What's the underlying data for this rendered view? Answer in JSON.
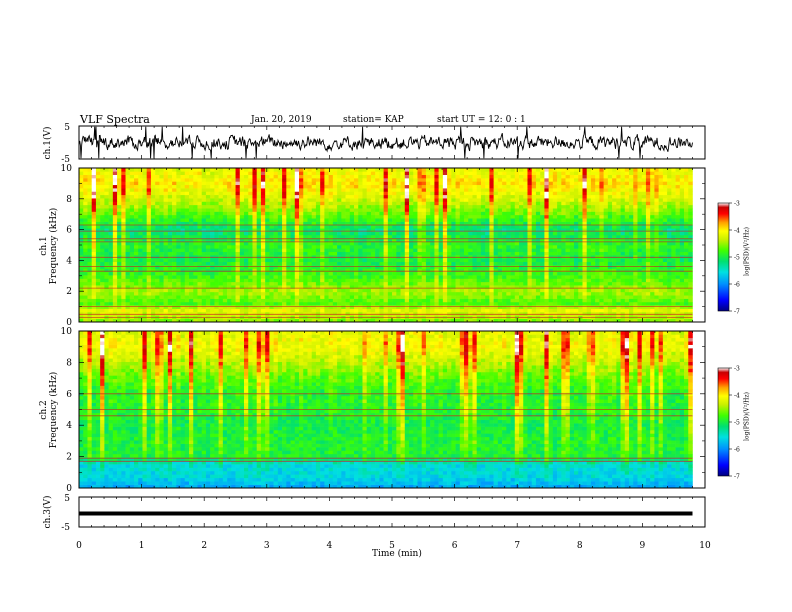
{
  "header": {
    "title": "VLF Spectra",
    "date": "Jan. 20, 2019",
    "station": "station= KAP",
    "start": "start UT =   12: 0  : 1"
  },
  "colors": {
    "colormap": [
      "#00007f",
      "#0000ff",
      "#0090ff",
      "#00e0e0",
      "#00e070",
      "#40ff00",
      "#c8f000",
      "#ffff00",
      "#ffa000",
      "#ff0000",
      "#c80000",
      "#ffffff"
    ],
    "trace": "#000000"
  },
  "chart_data": [
    {
      "type": "line",
      "panel": "ch1-waveform",
      "ylabel": "ch.1(V)",
      "ylim": [
        -5,
        5
      ],
      "yticks": [
        "5",
        "-5"
      ],
      "xlim": [
        0,
        10
      ],
      "series": [
        {
          "y_mean": 0,
          "y_spread": [
            -2.5,
            2.5
          ]
        }
      ],
      "data_extent_min": [
        0,
        9.8
      ]
    },
    {
      "type": "heatmap",
      "panel": "ch1-spectrogram",
      "ylabel_line1": "ch.1",
      "ylabel_line2": "Frequency (kHz)",
      "ylim": [
        0,
        10
      ],
      "yticks": [
        "0",
        "2",
        "4",
        "6",
        "8",
        "10"
      ],
      "xlim": [
        0,
        10
      ],
      "data_extent_min": [
        0,
        9.8
      ],
      "colorbar": {
        "label": "log(PSD)(V²/Hz)",
        "range": [
          -7,
          -3
        ],
        "ticks": [
          "-3",
          "-4",
          "-5",
          "-6",
          "-7"
        ]
      },
      "background_level_by_freq_khz": [
        {
          "f": 0.0,
          "level": -4.6
        },
        {
          "f": 0.8,
          "level": -4.2
        },
        {
          "f": 1.2,
          "level": -4.8
        },
        {
          "f": 2.0,
          "level": -4.5
        },
        {
          "f": 3.0,
          "level": -4.9
        },
        {
          "f": 4.0,
          "level": -5.1
        },
        {
          "f": 5.0,
          "level": -5.0
        },
        {
          "f": 6.0,
          "level": -5.3
        },
        {
          "f": 7.0,
          "level": -4.8
        },
        {
          "f": 8.0,
          "level": -4.4
        },
        {
          "f": 9.0,
          "level": -4.1
        },
        {
          "f": 10.0,
          "level": -4.3
        }
      ],
      "narrowband_lines_khz": [
        0.3,
        0.5,
        1.0,
        2.2,
        3.3,
        3.6,
        4.2,
        5.2,
        5.4,
        5.9,
        6.3
      ]
    },
    {
      "type": "heatmap",
      "panel": "ch2-spectrogram",
      "ylabel_line1": "ch.2",
      "ylabel_line2": "Frequency (kHz)",
      "ylim": [
        0,
        10
      ],
      "yticks": [
        "0",
        "2",
        "4",
        "6",
        "8",
        "10"
      ],
      "xlim": [
        0,
        10
      ],
      "data_extent_min": [
        0,
        9.8
      ],
      "colorbar": {
        "label": "log(PSD)(V²/Hz)",
        "range": [
          -7,
          -3
        ],
        "ticks": [
          "-3",
          "-4",
          "-5",
          "-6",
          "-7"
        ]
      },
      "background_level_by_freq_khz": [
        {
          "f": 0.0,
          "level": -5.9
        },
        {
          "f": 0.8,
          "level": -5.6
        },
        {
          "f": 1.5,
          "level": -5.6
        },
        {
          "f": 2.0,
          "level": -5.0
        },
        {
          "f": 3.0,
          "level": -5.0
        },
        {
          "f": 4.0,
          "level": -5.1
        },
        {
          "f": 5.0,
          "level": -5.0
        },
        {
          "f": 6.0,
          "level": -5.0
        },
        {
          "f": 7.0,
          "level": -4.8
        },
        {
          "f": 8.0,
          "level": -4.5
        },
        {
          "f": 9.0,
          "level": -4.2
        },
        {
          "f": 10.0,
          "level": -4.3
        }
      ],
      "narrowband_lines_khz": [
        1.7,
        1.9,
        4.6,
        5.0,
        6.0
      ]
    },
    {
      "type": "line",
      "panel": "ch3-waveform",
      "ylabel": "ch.3(V)",
      "ylim": [
        -5,
        5
      ],
      "yticks": [
        "5",
        "-5"
      ],
      "xlim": [
        0,
        10
      ],
      "series": [
        {
          "y_constant": -0.5
        }
      ],
      "data_extent_min": [
        0,
        9.8
      ],
      "xlabel": "Time  (min)",
      "xticks": [
        "0",
        "1",
        "2",
        "3",
        "4",
        "5",
        "6",
        "7",
        "8",
        "9",
        "10"
      ]
    }
  ]
}
